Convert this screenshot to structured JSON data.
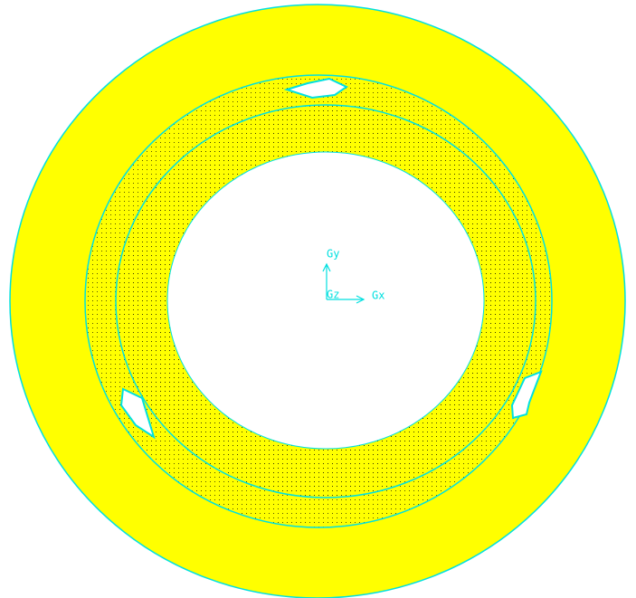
{
  "axes": {
    "y": "Gy",
    "z": "Gz",
    "x": "Gx"
  }
}
